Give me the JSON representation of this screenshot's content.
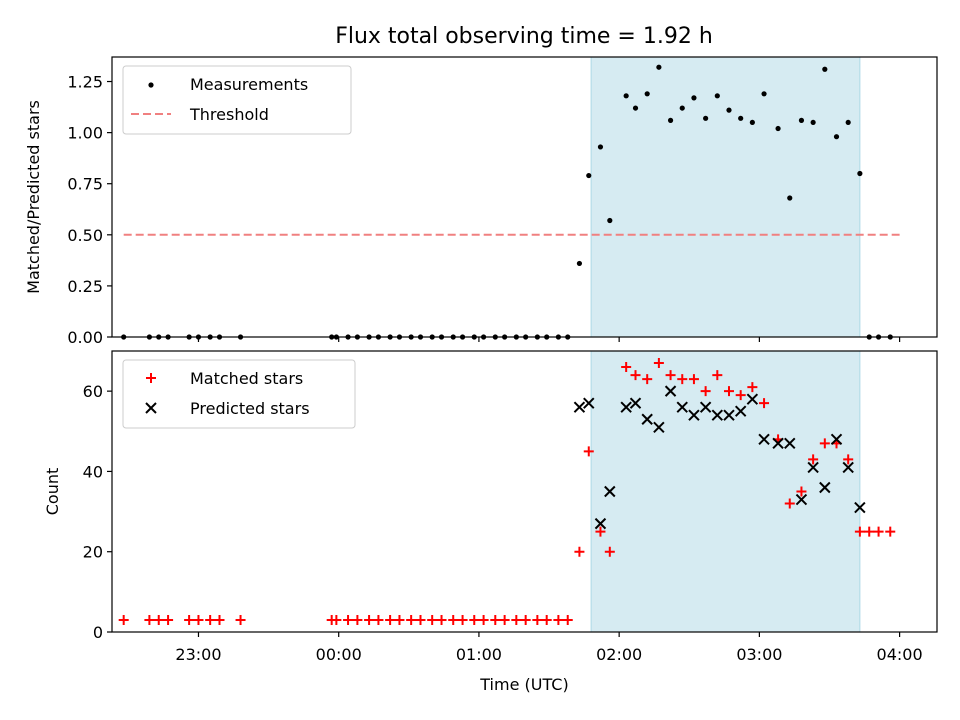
{
  "title": "Flux total observing time = 1.92 h",
  "chart_data": [
    {
      "type": "scatter",
      "ylabel": "Matched/Predicted stars",
      "xlabel": "",
      "xlim": [
        "22:23",
        "04:16"
      ],
      "ylim": [
        0,
        1.37
      ],
      "yticks": [
        0.0,
        0.25,
        0.5,
        0.75,
        1.0,
        1.25
      ],
      "ytick_labels": [
        "0.00",
        "0.25",
        "0.50",
        "0.75",
        "1.00",
        "1.25"
      ],
      "xticks": [
        "23:00",
        "00:00",
        "01:00",
        "02:00",
        "03:00",
        "04:00"
      ],
      "shaded_span": [
        "01:48",
        "03:43"
      ],
      "legend_position": "upper-left",
      "legend": [
        {
          "label": "Measurements",
          "marker": "dot",
          "color": "#000000"
        },
        {
          "label": "Threshold",
          "marker": "dashed-line",
          "color": "#f08080"
        }
      ],
      "threshold": {
        "value": 0.5,
        "x_start": "22:28",
        "x_end": "04:00"
      },
      "series": [
        {
          "name": "Measurements",
          "points": [
            [
              "22:28",
              0
            ],
            [
              "22:39",
              0
            ],
            [
              "22:43",
              0
            ],
            [
              "22:47",
              0
            ],
            [
              "22:56",
              0
            ],
            [
              "23:00",
              0
            ],
            [
              "23:05",
              0
            ],
            [
              "23:09",
              0
            ],
            [
              "23:18",
              0
            ],
            [
              "23:57",
              0
            ],
            [
              "23:59",
              0
            ],
            [
              "00:04",
              0
            ],
            [
              "00:08",
              0
            ],
            [
              "00:13",
              0
            ],
            [
              "00:17",
              0
            ],
            [
              "00:22",
              0
            ],
            [
              "00:26",
              0
            ],
            [
              "00:31",
              0
            ],
            [
              "00:35",
              0
            ],
            [
              "00:40",
              0
            ],
            [
              "00:44",
              0
            ],
            [
              "00:49",
              0
            ],
            [
              "00:53",
              0
            ],
            [
              "00:58",
              0
            ],
            [
              "01:02",
              0
            ],
            [
              "01:07",
              0
            ],
            [
              "01:11",
              0
            ],
            [
              "01:16",
              0
            ],
            [
              "01:20",
              0
            ],
            [
              "01:25",
              0
            ],
            [
              "01:29",
              0
            ],
            [
              "01:34",
              0
            ],
            [
              "01:38",
              0
            ],
            [
              "01:43",
              0.36
            ],
            [
              "01:47",
              0.79
            ],
            [
              "01:52",
              0.93
            ],
            [
              "01:56",
              0.57
            ],
            [
              "02:03",
              1.18
            ],
            [
              "02:07",
              1.12
            ],
            [
              "02:12",
              1.19
            ],
            [
              "02:17",
              1.32
            ],
            [
              "02:22",
              1.06
            ],
            [
              "02:27",
              1.12
            ],
            [
              "02:32",
              1.17
            ],
            [
              "02:37",
              1.07
            ],
            [
              "02:42",
              1.18
            ],
            [
              "02:47",
              1.11
            ],
            [
              "02:52",
              1.07
            ],
            [
              "02:57",
              1.05
            ],
            [
              "03:02",
              1.19
            ],
            [
              "03:08",
              1.02
            ],
            [
              "03:13",
              0.68
            ],
            [
              "03:18",
              1.06
            ],
            [
              "03:23",
              1.05
            ],
            [
              "03:28",
              1.31
            ],
            [
              "03:33",
              0.98
            ],
            [
              "03:38",
              1.05
            ],
            [
              "03:43",
              0.8
            ],
            [
              "03:47",
              0
            ],
            [
              "03:51",
              0
            ],
            [
              "03:56",
              0
            ]
          ]
        }
      ]
    },
    {
      "type": "scatter",
      "ylabel": "Count",
      "xlabel": "Time (UTC)",
      "xlim": [
        "22:23",
        "04:16"
      ],
      "ylim": [
        0,
        70
      ],
      "yticks": [
        0,
        20,
        40,
        60
      ],
      "ytick_labels": [
        "0",
        "20",
        "40",
        "60"
      ],
      "xticks": [
        "23:00",
        "00:00",
        "01:00",
        "02:00",
        "03:00",
        "04:00"
      ],
      "xtick_labels": [
        "23:00",
        "00:00",
        "01:00",
        "02:00",
        "03:00",
        "04:00"
      ],
      "shaded_span": [
        "01:48",
        "03:43"
      ],
      "legend_position": "upper-left",
      "legend": [
        {
          "label": "Matched stars",
          "marker": "plus",
          "color": "#ff0000"
        },
        {
          "label": "Predicted stars",
          "marker": "x",
          "color": "#000000"
        }
      ],
      "series": [
        {
          "name": "Matched stars",
          "points": [
            [
              "22:28",
              3
            ],
            [
              "22:39",
              3
            ],
            [
              "22:43",
              3
            ],
            [
              "22:47",
              3
            ],
            [
              "22:56",
              3
            ],
            [
              "23:00",
              3
            ],
            [
              "23:05",
              3
            ],
            [
              "23:09",
              3
            ],
            [
              "23:18",
              3
            ],
            [
              "23:57",
              3
            ],
            [
              "23:59",
              3
            ],
            [
              "00:04",
              3
            ],
            [
              "00:08",
              3
            ],
            [
              "00:13",
              3
            ],
            [
              "00:17",
              3
            ],
            [
              "00:22",
              3
            ],
            [
              "00:26",
              3
            ],
            [
              "00:31",
              3
            ],
            [
              "00:35",
              3
            ],
            [
              "00:40",
              3
            ],
            [
              "00:44",
              3
            ],
            [
              "00:49",
              3
            ],
            [
              "00:53",
              3
            ],
            [
              "00:58",
              3
            ],
            [
              "01:02",
              3
            ],
            [
              "01:07",
              3
            ],
            [
              "01:11",
              3
            ],
            [
              "01:16",
              3
            ],
            [
              "01:20",
              3
            ],
            [
              "01:25",
              3
            ],
            [
              "01:29",
              3
            ],
            [
              "01:34",
              3
            ],
            [
              "01:38",
              3
            ],
            [
              "01:43",
              20
            ],
            [
              "01:47",
              45
            ],
            [
              "01:52",
              25
            ],
            [
              "01:56",
              20
            ],
            [
              "02:03",
              66
            ],
            [
              "02:07",
              64
            ],
            [
              "02:12",
              63
            ],
            [
              "02:17",
              67
            ],
            [
              "02:22",
              64
            ],
            [
              "02:27",
              63
            ],
            [
              "02:32",
              63
            ],
            [
              "02:37",
              60
            ],
            [
              "02:42",
              64
            ],
            [
              "02:47",
              60
            ],
            [
              "02:52",
              59
            ],
            [
              "02:57",
              61
            ],
            [
              "03:02",
              57
            ],
            [
              "03:08",
              48
            ],
            [
              "03:13",
              32
            ],
            [
              "03:18",
              35
            ],
            [
              "03:23",
              43
            ],
            [
              "03:28",
              47
            ],
            [
              "03:33",
              47
            ],
            [
              "03:38",
              43
            ],
            [
              "03:43",
              25
            ],
            [
              "03:47",
              25
            ],
            [
              "03:51",
              25
            ],
            [
              "03:56",
              25
            ]
          ]
        },
        {
          "name": "Predicted stars",
          "points": [
            [
              "01:43",
              56
            ],
            [
              "01:47",
              57
            ],
            [
              "01:52",
              27
            ],
            [
              "01:56",
              35
            ],
            [
              "02:03",
              56
            ],
            [
              "02:07",
              57
            ],
            [
              "02:12",
              53
            ],
            [
              "02:17",
              51
            ],
            [
              "02:22",
              60
            ],
            [
              "02:27",
              56
            ],
            [
              "02:32",
              54
            ],
            [
              "02:37",
              56
            ],
            [
              "02:42",
              54
            ],
            [
              "02:47",
              54
            ],
            [
              "02:52",
              55
            ],
            [
              "02:57",
              58
            ],
            [
              "03:02",
              48
            ],
            [
              "03:08",
              47
            ],
            [
              "03:13",
              47
            ],
            [
              "03:18",
              33
            ],
            [
              "03:23",
              41
            ],
            [
              "03:28",
              36
            ],
            [
              "03:33",
              48
            ],
            [
              "03:38",
              41
            ],
            [
              "03:43",
              31
            ]
          ]
        }
      ]
    }
  ]
}
